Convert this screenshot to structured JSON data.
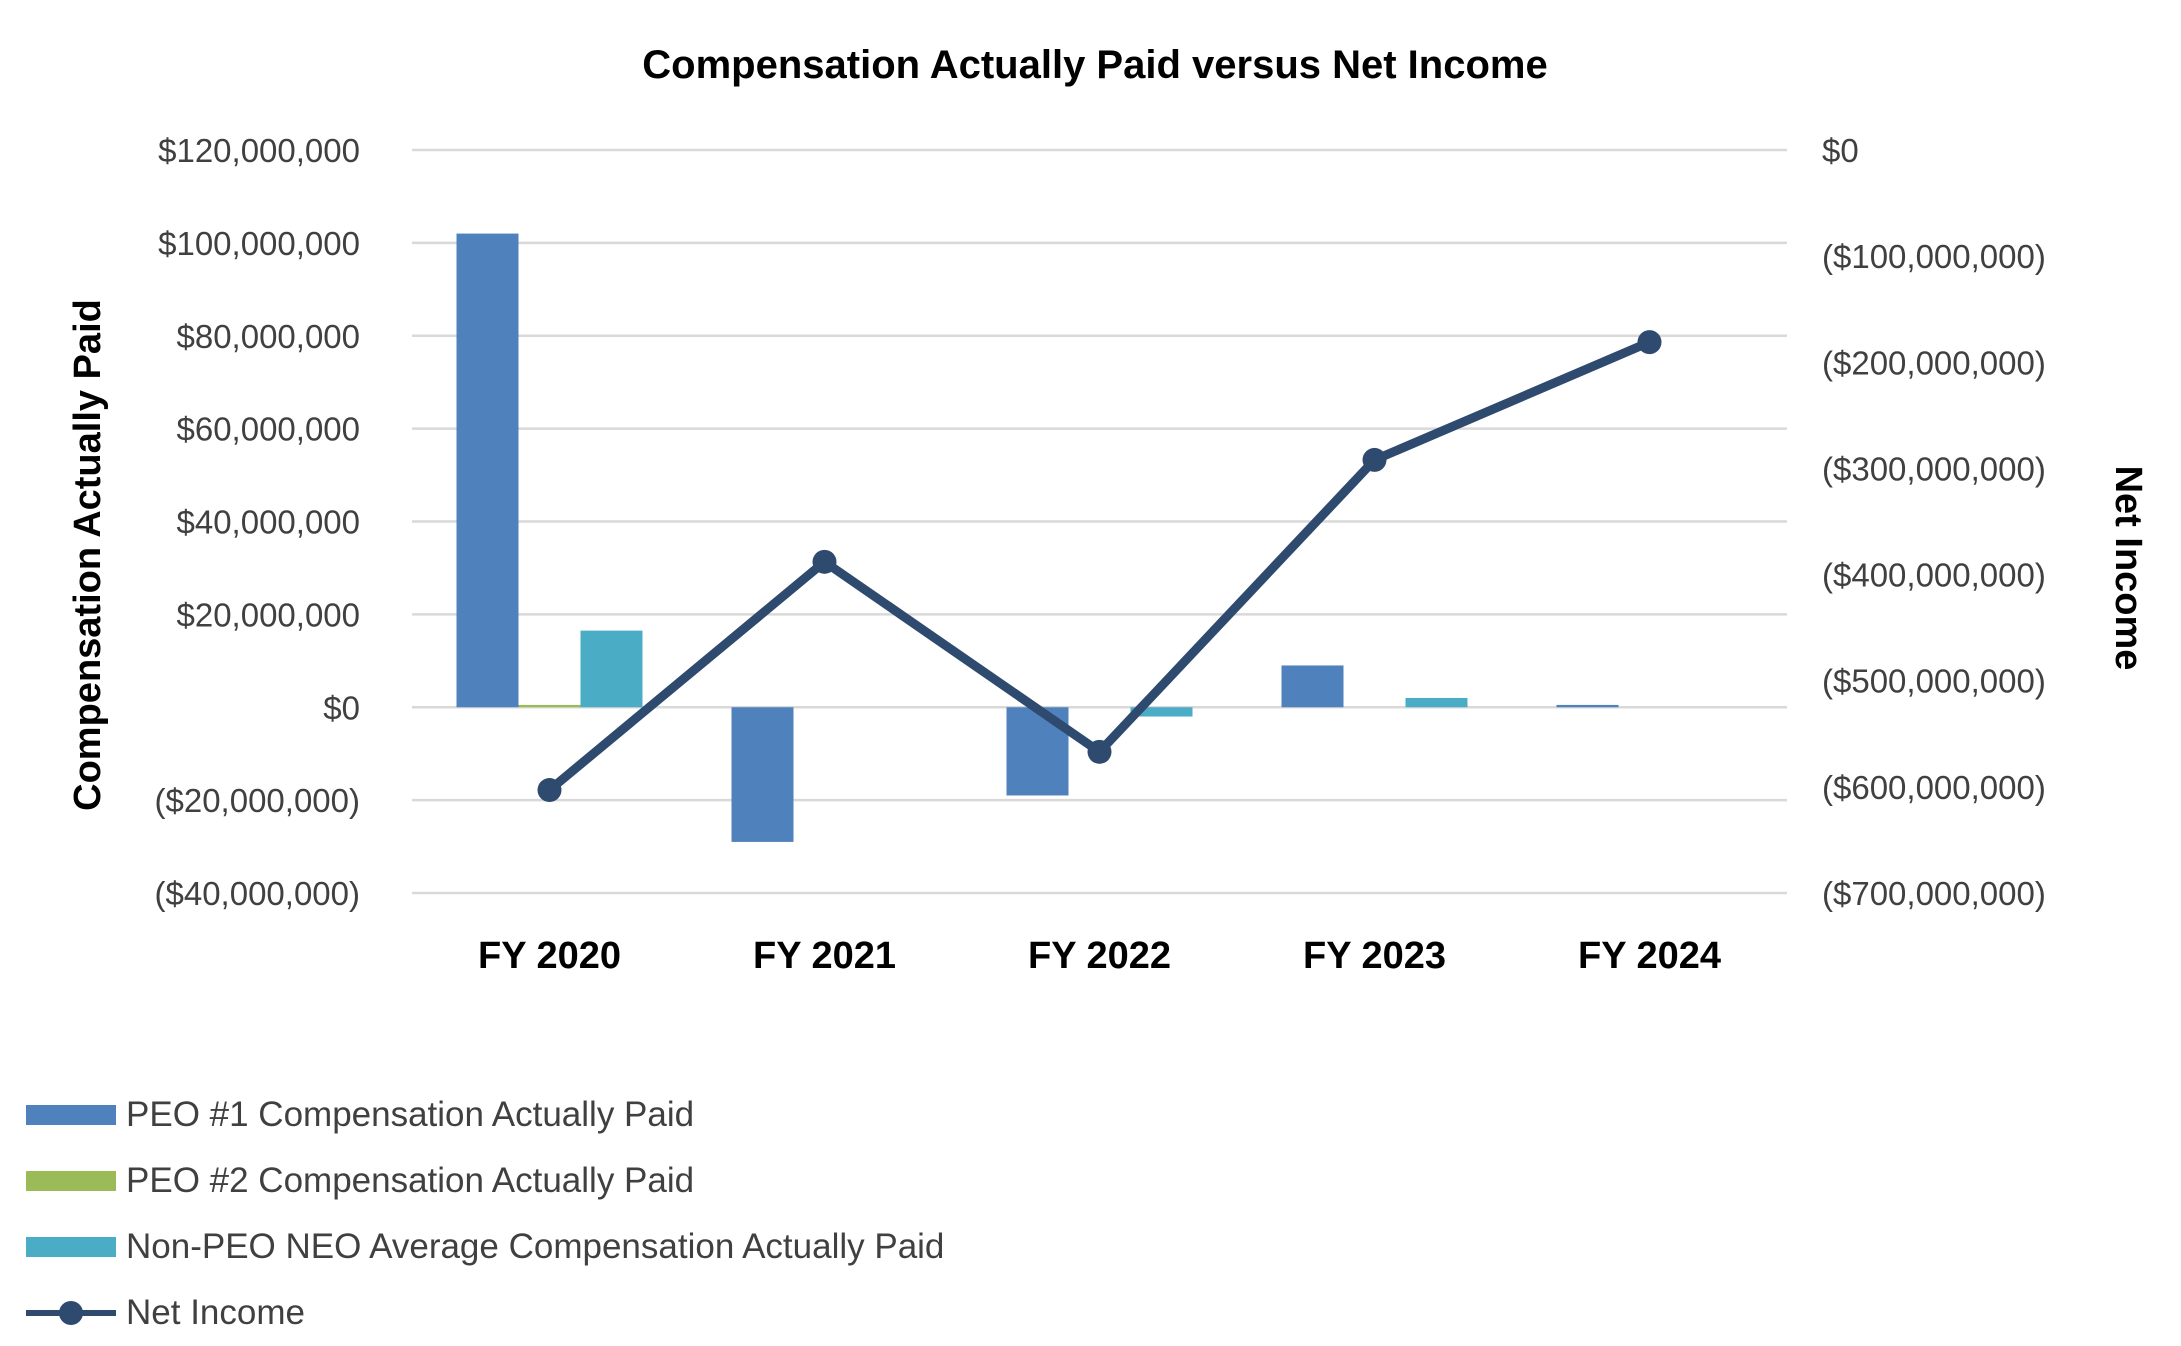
{
  "chart_data": {
    "type": "bar+line",
    "title": "Compensation Actually Paid versus Net Income",
    "categories": [
      "FY 2020",
      "FY 2021",
      "FY 2022",
      "FY 2023",
      "FY 2024"
    ],
    "left_axis": {
      "label": "Compensation Actually Paid",
      "ylim": [
        -40000000,
        120000000
      ],
      "ticks": [
        120000000,
        100000000,
        80000000,
        60000000,
        40000000,
        20000000,
        0,
        -20000000,
        -40000000
      ],
      "tick_labels": [
        "$120,000,000",
        "$100,000,000",
        "$80,000,000",
        "$60,000,000",
        "$40,000,000",
        "$20,000,000",
        "$0",
        "($20,000,000)",
        "($40,000,000)"
      ]
    },
    "right_axis": {
      "label": "Net Income",
      "ylim": [
        -700000000,
        0
      ],
      "ticks": [
        0,
        -100000000,
        -200000000,
        -300000000,
        -400000000,
        -500000000,
        -600000000,
        -700000000
      ],
      "tick_labels": [
        "$0",
        "($100,000,000)",
        "($200,000,000)",
        "($300,000,000)",
        "($400,000,000)",
        "($500,000,000)",
        "($600,000,000)",
        "($700,000,000)"
      ]
    },
    "series": [
      {
        "name": "PEO #1 Compensation Actually Paid",
        "type": "bar",
        "axis": "left",
        "color": "#4F81BD",
        "values": [
          102000000,
          -29000000,
          -19000000,
          9000000,
          500000
        ]
      },
      {
        "name": "PEO #2 Compensation Actually Paid",
        "type": "bar",
        "axis": "left",
        "color": "#9BBB59",
        "values": [
          500000,
          0,
          0,
          0,
          0
        ]
      },
      {
        "name": "Non-PEO NEO Average Compensation Actually Paid",
        "type": "bar",
        "axis": "left",
        "color": "#4BACC6",
        "values": [
          16500000,
          0,
          -2000000,
          2000000,
          0
        ]
      },
      {
        "name": "Net Income",
        "type": "line",
        "axis": "right",
        "color": "#2E4A6E",
        "values": [
          -603000000,
          -388000000,
          -567000000,
          -292000000,
          -181000000
        ]
      }
    ],
    "grid": true,
    "legend": "bottom-left"
  }
}
